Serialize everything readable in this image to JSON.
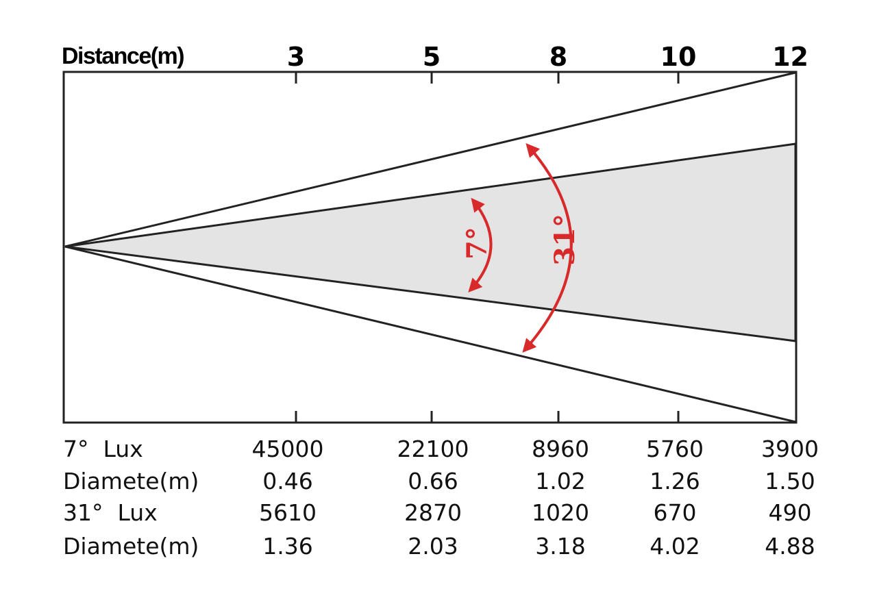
{
  "header": {
    "label": "Distance(m)",
    "distances": [
      "3",
      "5",
      "8",
      "10",
      "12"
    ]
  },
  "angles": {
    "narrow": "7°",
    "wide": "31°"
  },
  "table": {
    "rows": [
      {
        "label": "7°  Lux",
        "values": [
          "45000",
          "22100",
          "8960",
          "5760",
          "3900"
        ]
      },
      {
        "label": "Diamete(m)",
        "values": [
          "0.46",
          "0.66",
          "1.02",
          "1.26",
          "1.50"
        ]
      },
      {
        "label": "31°  Lux",
        "values": [
          "5610",
          "2870",
          "1020",
          "670",
          "490"
        ]
      },
      {
        "label": "Diamete(m)",
        "values": [
          "1.36",
          "2.03",
          "3.18",
          "4.02",
          "4.88"
        ]
      }
    ]
  }
}
